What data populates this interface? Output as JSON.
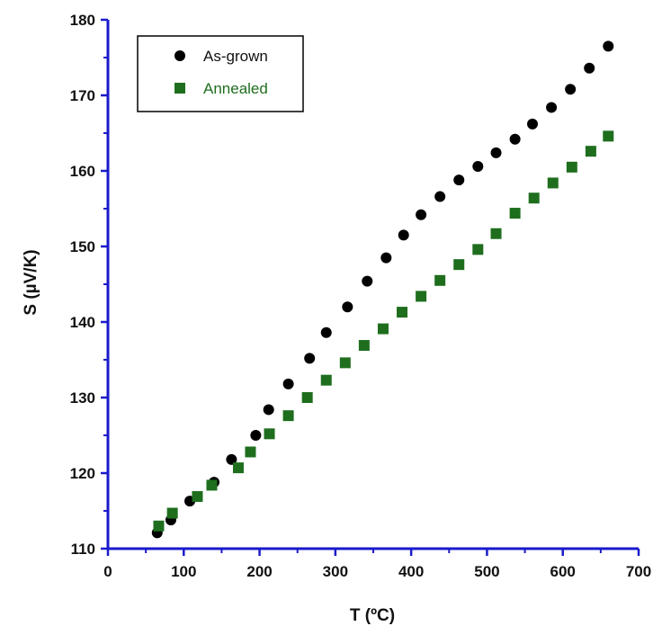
{
  "chart_data": {
    "type": "scatter",
    "title": "",
    "xlabel": "T (ºC)",
    "ylabel": "S (µV/K)",
    "xlim": [
      0,
      700
    ],
    "ylim": [
      110,
      180
    ],
    "x_ticks": [
      "0",
      "100",
      "200",
      "300",
      "400",
      "500",
      "600",
      "700"
    ],
    "y_ticks": [
      "110",
      "120",
      "130",
      "140",
      "150",
      "160",
      "170",
      "180"
    ],
    "grid": false,
    "legend_position": "top-left",
    "axis_color": "#1a1acc",
    "series": [
      {
        "name": "As-grown",
        "marker": "circle",
        "color": "#000000",
        "x": [
          65,
          83,
          108,
          140,
          163,
          195,
          212,
          238,
          266,
          288,
          316,
          342,
          367,
          390,
          413,
          438,
          463,
          488,
          512,
          537,
          560,
          585,
          610,
          635,
          660
        ],
        "y": [
          112.1,
          113.8,
          116.3,
          118.8,
          121.8,
          125.0,
          128.4,
          131.8,
          135.2,
          138.6,
          142.0,
          145.4,
          148.5,
          151.5,
          154.2,
          156.6,
          158.8,
          160.6,
          162.4,
          164.2,
          166.2,
          168.4,
          170.8,
          173.6,
          176.5
        ]
      },
      {
        "name": "Annealed",
        "marker": "square",
        "color": "#1e6e1e",
        "x": [
          67,
          85,
          118,
          137,
          172,
          188,
          213,
          238,
          263,
          288,
          313,
          338,
          363,
          388,
          413,
          438,
          463,
          488,
          512,
          537,
          562,
          587,
          612,
          637,
          660
        ],
        "y": [
          113.0,
          114.7,
          116.9,
          118.4,
          120.7,
          122.8,
          125.2,
          127.6,
          130.0,
          132.3,
          134.6,
          136.9,
          139.1,
          141.3,
          143.4,
          145.5,
          147.6,
          149.6,
          151.7,
          154.4,
          156.4,
          158.4,
          160.5,
          162.6,
          164.6
        ]
      }
    ]
  }
}
